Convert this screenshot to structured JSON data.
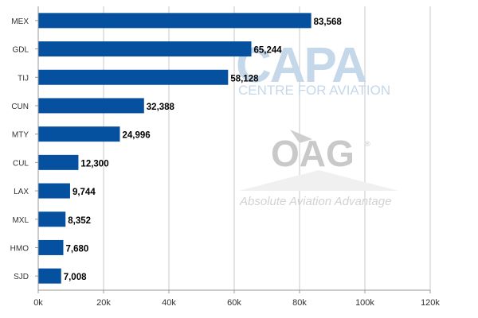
{
  "chart_data": {
    "type": "bar",
    "orientation": "horizontal",
    "categories": [
      "MEX",
      "GDL",
      "TIJ",
      "CUN",
      "MTY",
      "CUL",
      "LAX",
      "MXL",
      "HMO",
      "SJD"
    ],
    "values": [
      83568,
      65244,
      58128,
      32388,
      24996,
      12300,
      9744,
      8352,
      7680,
      7008
    ],
    "value_labels": [
      "83,568",
      "65,244",
      "58,128",
      "32,388",
      "24,996",
      "12,300",
      "9,744",
      "8,352",
      "7,680",
      "7,008"
    ],
    "xlim": [
      0,
      120000
    ],
    "x_ticks": [
      0,
      20000,
      40000,
      60000,
      80000,
      100000,
      120000
    ],
    "x_tick_labels": [
      "0k",
      "20k",
      "40k",
      "60k",
      "80k",
      "100k",
      "120k"
    ],
    "grid": "vertical",
    "bar_color": "#0650a0",
    "title": "",
    "xlabel": "",
    "ylabel": ""
  },
  "watermarks": {
    "capa_logo": "CAPA",
    "capa_subtitle": "CENTRE FOR AVIATION",
    "oag_logo": "OAG",
    "oag_tagline": "Absolute Aviation Advantage"
  }
}
